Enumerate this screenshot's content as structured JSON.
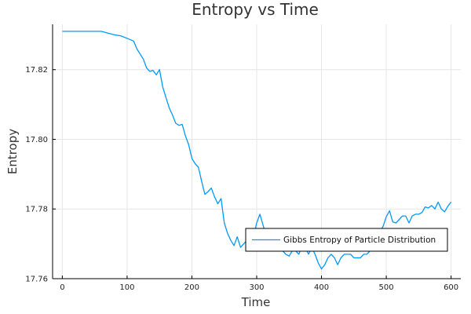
{
  "chart_data": {
    "type": "line",
    "title": "Entropy vs Time",
    "xlabel": "Time",
    "ylabel": "Entropy",
    "xlim": [
      -15,
      615
    ],
    "ylim": [
      17.76,
      17.833
    ],
    "x_ticks": [
      0,
      100,
      200,
      300,
      400,
      500,
      600
    ],
    "x_tick_labels": [
      "0",
      "100",
      "200",
      "300",
      "400",
      "500",
      "600"
    ],
    "y_ticks": [
      17.76,
      17.78,
      17.8,
      17.82
    ],
    "y_tick_labels": [
      "17.76",
      "17.78",
      "17.80",
      "17.82"
    ],
    "grid": true,
    "legend": {
      "position": "lower-right"
    },
    "series": [
      {
        "name": "Gibbs Entropy of Particle Distribution",
        "color": "#009af9",
        "x": [
          0,
          20,
          40,
          60,
          70,
          80,
          90,
          100,
          110,
          115,
          120,
          125,
          130,
          135,
          140,
          145,
          150,
          155,
          160,
          165,
          170,
          175,
          180,
          185,
          190,
          195,
          200,
          205,
          210,
          215,
          220,
          225,
          230,
          235,
          240,
          245,
          250,
          255,
          260,
          265,
          270,
          275,
          280,
          285,
          290,
          295,
          300,
          305,
          310,
          315,
          320,
          325,
          330,
          335,
          340,
          345,
          350,
          355,
          360,
          365,
          370,
          375,
          380,
          385,
          390,
          395,
          400,
          405,
          410,
          415,
          420,
          425,
          430,
          435,
          440,
          445,
          450,
          455,
          460,
          465,
          470,
          475,
          480,
          485,
          490,
          495,
          500,
          505,
          510,
          515,
          520,
          525,
          530,
          535,
          540,
          545,
          550,
          555,
          560,
          565,
          570,
          575,
          580,
          585,
          590,
          595,
          600
        ],
        "y": [
          17.831,
          17.831,
          17.831,
          17.831,
          17.8305,
          17.83,
          17.8297,
          17.829,
          17.8282,
          17.826,
          17.8245,
          17.823,
          17.8205,
          17.8195,
          17.8198,
          17.8185,
          17.82,
          17.815,
          17.812,
          17.809,
          17.807,
          17.8046,
          17.804,
          17.8043,
          17.801,
          17.7985,
          17.7945,
          17.793,
          17.792,
          17.788,
          17.7842,
          17.785,
          17.786,
          17.7835,
          17.7815,
          17.783,
          17.776,
          17.773,
          17.771,
          17.7695,
          17.772,
          17.769,
          17.77,
          17.771,
          17.7705,
          17.772,
          17.776,
          17.7785,
          17.7752,
          17.772,
          17.771,
          17.7715,
          17.769,
          17.768,
          17.768,
          17.767,
          17.7665,
          17.768,
          17.768,
          17.767,
          17.7695,
          17.769,
          17.767,
          17.769,
          17.767,
          17.7645,
          17.7628,
          17.764,
          17.766,
          17.767,
          17.766,
          17.764,
          17.766,
          17.767,
          17.767,
          17.767,
          17.766,
          17.766,
          17.766,
          17.767,
          17.767,
          17.768,
          17.7695,
          17.7715,
          17.7735,
          17.775,
          17.7778,
          17.7795,
          17.7763,
          17.776,
          17.777,
          17.778,
          17.778,
          17.776,
          17.778,
          17.7785,
          17.7785,
          17.779,
          17.7806,
          17.7803,
          17.781,
          17.78,
          17.782,
          17.78,
          17.7792,
          17.7808,
          17.782
        ]
      }
    ]
  }
}
